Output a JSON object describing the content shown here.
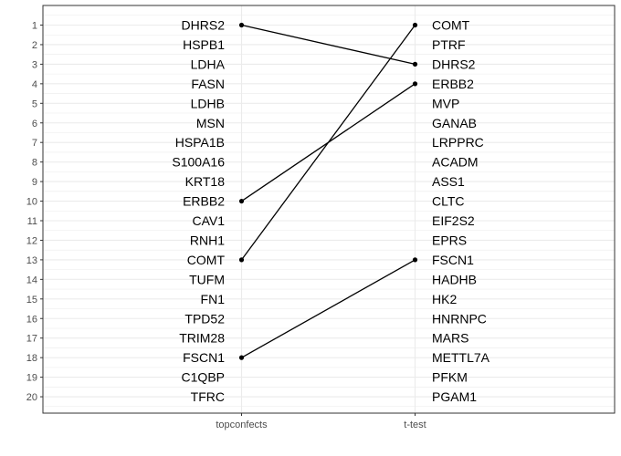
{
  "chart_data": {
    "type": "slope",
    "title": "",
    "xlabel": "",
    "ylabel": "",
    "x_categories": [
      "topconfects",
      "t-test"
    ],
    "y_ticks": [
      1,
      2,
      3,
      4,
      5,
      6,
      7,
      8,
      9,
      10,
      11,
      12,
      13,
      14,
      15,
      16,
      17,
      18,
      19,
      20
    ],
    "ylim": [
      0,
      21
    ],
    "y_reversed": true,
    "grid": true,
    "legend": "none",
    "rankings": [
      {
        "method": "topconfects",
        "genes": [
          "DHRS2",
          "HSPB1",
          "LDHA",
          "FASN",
          "LDHB",
          "MSN",
          "HSPA1B",
          "S100A16",
          "KRT18",
          "ERBB2",
          "CAV1",
          "RNH1",
          "COMT",
          "TUFM",
          "FN1",
          "TPD52",
          "TRIM28",
          "FSCN1",
          "C1QBP",
          "TFRC"
        ]
      },
      {
        "method": "t-test",
        "genes": [
          "COMT",
          "PTRF",
          "DHRS2",
          "ERBB2",
          "MVP",
          "GANAB",
          "LRPPRC",
          "ACADM",
          "ASS1",
          "CLTC",
          "EIF2S2",
          "EPRS",
          "FSCN1",
          "HADHB",
          "HK2",
          "HNRNPC",
          "MARS",
          "METTL7A",
          "PFKM",
          "PGAM1"
        ]
      }
    ],
    "links": [
      {
        "gene": "DHRS2",
        "from_rank": 1,
        "to_rank": 3
      },
      {
        "gene": "ERBB2",
        "from_rank": 10,
        "to_rank": 4
      },
      {
        "gene": "COMT",
        "from_rank": 13,
        "to_rank": 1
      },
      {
        "gene": "FSCN1",
        "from_rank": 18,
        "to_rank": 13
      }
    ],
    "colors": {
      "background": "#ffffff",
      "panel_border": "#333333",
      "grid": "#ebebeb",
      "line": "#000000",
      "point": "#000000",
      "tick_text": "#4d4d4d"
    }
  }
}
